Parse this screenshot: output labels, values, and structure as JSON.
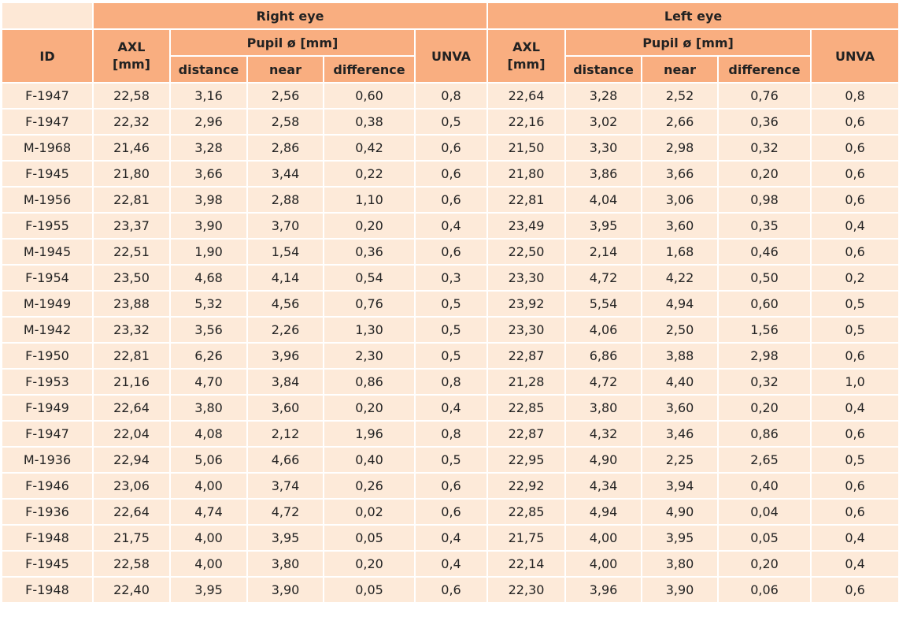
{
  "header": {
    "right_eye": "Right eye",
    "left_eye": "Left eye",
    "id": "ID",
    "axl_1": "AXL",
    "axl_2": "[mm]",
    "pupil": "Pupil ø [mm]",
    "unva": "UNVA",
    "distance": "distance",
    "near": "near",
    "difference": "difference"
  },
  "rows": [
    [
      "F-1947",
      "22,58",
      "3,16",
      "2,56",
      "0,60",
      "0,8",
      "22,64",
      "3,28",
      "2,52",
      "0,76",
      "0,8"
    ],
    [
      "F-1947",
      "22,32",
      "2,96",
      "2,58",
      "0,38",
      "0,5",
      "22,16",
      "3,02",
      "2,66",
      "0,36",
      "0,6"
    ],
    [
      "M-1968",
      "21,46",
      "3,28",
      "2,86",
      "0,42",
      "0,6",
      "21,50",
      "3,30",
      "2,98",
      "0,32",
      "0,6"
    ],
    [
      "F-1945",
      "21,80",
      "3,66",
      "3,44",
      "0,22",
      "0,6",
      "21,80",
      "3,86",
      "3,66",
      "0,20",
      "0,6"
    ],
    [
      "M-1956",
      "22,81",
      "3,98",
      "2,88",
      "1,10",
      "0,6",
      "22,81",
      "4,04",
      "3,06",
      "0,98",
      "0,6"
    ],
    [
      "F-1955",
      "23,37",
      "3,90",
      "3,70",
      "0,20",
      "0,4",
      "23,49",
      "3,95",
      "3,60",
      "0,35",
      "0,4"
    ],
    [
      "M-1945",
      "22,51",
      "1,90",
      "1,54",
      "0,36",
      "0,6",
      "22,50",
      "2,14",
      "1,68",
      "0,46",
      "0,6"
    ],
    [
      "F-1954",
      "23,50",
      "4,68",
      "4,14",
      "0,54",
      "0,3",
      "23,30",
      "4,72",
      "4,22",
      "0,50",
      "0,2"
    ],
    [
      "M-1949",
      "23,88",
      "5,32",
      "4,56",
      "0,76",
      "0,5",
      "23,92",
      "5,54",
      "4,94",
      "0,60",
      "0,5"
    ],
    [
      "M-1942",
      "23,32",
      "3,56",
      "2,26",
      "1,30",
      "0,5",
      "23,30",
      "4,06",
      "2,50",
      "1,56",
      "0,5"
    ],
    [
      "F-1950",
      "22,81",
      "6,26",
      "3,96",
      "2,30",
      "0,5",
      "22,87",
      "6,86",
      "3,88",
      "2,98",
      "0,6"
    ],
    [
      "F-1953",
      "21,16",
      "4,70",
      "3,84",
      "0,86",
      "0,8",
      "21,28",
      "4,72",
      "4,40",
      "0,32",
      "1,0"
    ],
    [
      "F-1949",
      "22,64",
      "3,80",
      "3,60",
      "0,20",
      "0,4",
      "22,85",
      "3,80",
      "3,60",
      "0,20",
      "0,4"
    ],
    [
      "F-1947",
      "22,04",
      "4,08",
      "2,12",
      "1,96",
      "0,8",
      "22,87",
      "4,32",
      "3,46",
      "0,86",
      "0,6"
    ],
    [
      "M-1936",
      "22,94",
      "5,06",
      "4,66",
      "0,40",
      "0,5",
      "22,95",
      "4,90",
      "2,25",
      "2,65",
      "0,5"
    ],
    [
      "F-1946",
      "23,06",
      "4,00",
      "3,74",
      "0,26",
      "0,6",
      "22,92",
      "4,34",
      "3,94",
      "0,40",
      "0,6"
    ],
    [
      "F-1936",
      "22,64",
      "4,74",
      "4,72",
      "0,02",
      "0,6",
      "22,85",
      "4,94",
      "4,90",
      "0,04",
      "0,6"
    ],
    [
      "F-1948",
      "21,75",
      "4,00",
      "3,95",
      "0,05",
      "0,4",
      "21,75",
      "4,00",
      "3,95",
      "0,05",
      "0,4"
    ],
    [
      "F-1945",
      "22,58",
      "4,00",
      "3,80",
      "0,20",
      "0,4",
      "22,14",
      "4,00",
      "3,80",
      "0,20",
      "0,4"
    ],
    [
      "F-1948",
      "22,40",
      "3,95",
      "3,90",
      "0,05",
      "0,6",
      "22,30",
      "3,96",
      "3,90",
      "0,06",
      "0,6"
    ]
  ]
}
